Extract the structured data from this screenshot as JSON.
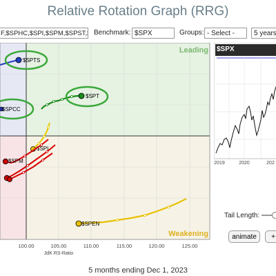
{
  "title": "Relative Rotation Graph (RRG)",
  "toolbar": {
    "symbols_value": "F,$SPHC,$SPI,$SPM,$SPST,$",
    "benchmark_label": "Benchmark:",
    "benchmark_value": "$SPX",
    "groups_label": "Groups:",
    "groups_value": "- Select -",
    "period_value": "5 years"
  },
  "rrg": {
    "quadrants": {
      "leading": "Leading",
      "weakening": "Weakening"
    },
    "x_axis_label": "JdK RS-Ratio",
    "x_ticks": [
      "100.00",
      "105.00",
      "110.00",
      "115.00",
      "120.00",
      "125.00"
    ],
    "symbols": [
      {
        "name": "$SPTS",
        "color": "#1f3fbf",
        "highlight": true
      },
      {
        "name": "$SPT",
        "color": "#1a8a1a",
        "highlight": true
      },
      {
        "name": "$SPCC",
        "color": "#1f2f9f",
        "highlight": true
      },
      {
        "name": "$SPI",
        "color": "#e8c800",
        "highlight": false
      },
      {
        "name": "$SPM",
        "color": "#cc0000",
        "highlight": false
      },
      {
        "name": "$SPEN",
        "color": "#e8c000",
        "highlight": false
      }
    ]
  },
  "mini_chart": {
    "label": "$SPX",
    "x_ticks": [
      "2019",
      "2020",
      "202"
    ]
  },
  "controls": {
    "tail_length_label": "Tail Length:",
    "animate_label": "animate",
    "plus_label": "+"
  },
  "caption": "5 months ending Dec 1, 2023",
  "colors": {
    "leading_bg": "#e6f2e2",
    "weakening_bg": "#f6f3e6",
    "lagging_bg": "#f8e4e6",
    "improving_bg": "#e6e8f4",
    "chart_bg": "#2b2b2b"
  }
}
